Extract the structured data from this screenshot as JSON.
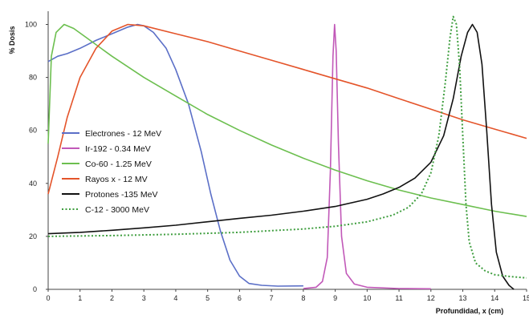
{
  "chart_data": {
    "type": "line",
    "title": "",
    "xlabel": "Profundidad, x (cm)",
    "ylabel": "% Dosis",
    "xlim": [
      0,
      15
    ],
    "ylim": [
      0,
      105
    ],
    "x_ticks": [
      "0",
      "1",
      "2",
      "3",
      "4",
      "5",
      "6",
      "7",
      "8",
      "9",
      "10",
      "11",
      "12",
      "13",
      "14",
      "15"
    ],
    "y_ticks": [
      "0",
      "20",
      "40",
      "60",
      "80",
      "100"
    ],
    "grid": false,
    "legend_position": "left-center",
    "series": [
      {
        "name": "Electrones - 12 MeV",
        "color": "#5b6fc7",
        "dash": "solid",
        "points": [
          [
            0,
            86
          ],
          [
            0.3,
            88
          ],
          [
            0.6,
            89
          ],
          [
            1,
            91
          ],
          [
            1.5,
            94
          ],
          [
            2,
            96.5
          ],
          [
            2.5,
            99
          ],
          [
            2.8,
            100
          ],
          [
            3,
            99.5
          ],
          [
            3.3,
            97
          ],
          [
            3.7,
            91
          ],
          [
            4,
            83
          ],
          [
            4.4,
            70
          ],
          [
            4.8,
            52
          ],
          [
            5.1,
            36
          ],
          [
            5.4,
            22
          ],
          [
            5.7,
            11
          ],
          [
            6,
            5
          ],
          [
            6.3,
            2.2
          ],
          [
            6.7,
            1.5
          ],
          [
            7.2,
            1.2
          ],
          [
            8,
            1.3
          ]
        ]
      },
      {
        "name": "Ir-192  -  0.34 MeV",
        "color": "#c158b8",
        "dash": "solid",
        "points": [
          [
            8,
            0.3
          ],
          [
            8.4,
            0.8
          ],
          [
            8.6,
            3
          ],
          [
            8.75,
            12
          ],
          [
            8.85,
            45
          ],
          [
            8.93,
            88
          ],
          [
            8.98,
            100
          ],
          [
            9.03,
            90
          ],
          [
            9.1,
            55
          ],
          [
            9.2,
            20
          ],
          [
            9.35,
            6
          ],
          [
            9.6,
            2
          ],
          [
            10,
            0.8
          ],
          [
            11,
            0.3
          ],
          [
            12,
            0.2
          ]
        ]
      },
      {
        "name": "Co-60 - 1.25 MeV",
        "color": "#6cbf4f",
        "dash": "solid",
        "points": [
          [
            0,
            55
          ],
          [
            0.1,
            88
          ],
          [
            0.25,
            97
          ],
          [
            0.5,
            100
          ],
          [
            0.8,
            98.5
          ],
          [
            1.2,
            95
          ],
          [
            2,
            88
          ],
          [
            3,
            80
          ],
          [
            4,
            73
          ],
          [
            5,
            66
          ],
          [
            6,
            60
          ],
          [
            7,
            54.5
          ],
          [
            8,
            49.5
          ],
          [
            9,
            45
          ],
          [
            10,
            41
          ],
          [
            11,
            37.5
          ],
          [
            12,
            34.5
          ],
          [
            13,
            32
          ],
          [
            14,
            29.5
          ],
          [
            15,
            27.5
          ]
        ]
      },
      {
        "name": "Rayos x - 12 MV",
        "color": "#e4542a",
        "dash": "solid",
        "points": [
          [
            0,
            36
          ],
          [
            0.3,
            50
          ],
          [
            0.6,
            65
          ],
          [
            1,
            80
          ],
          [
            1.5,
            91
          ],
          [
            2,
            97.5
          ],
          [
            2.5,
            100
          ],
          [
            3,
            99.5
          ],
          [
            4,
            96.5
          ],
          [
            5,
            93.5
          ],
          [
            6,
            90
          ],
          [
            7,
            86.5
          ],
          [
            8,
            83
          ],
          [
            9,
            79.5
          ],
          [
            10,
            76
          ],
          [
            11,
            72
          ],
          [
            12,
            68
          ],
          [
            13,
            64
          ],
          [
            14,
            60.5
          ],
          [
            15,
            57
          ]
        ]
      },
      {
        "name": "Protones -135 MeV",
        "color": "#111111",
        "dash": "solid",
        "points": [
          [
            0,
            21
          ],
          [
            1,
            21.5
          ],
          [
            2,
            22.3
          ],
          [
            3,
            23.2
          ],
          [
            4,
            24.2
          ],
          [
            5,
            25.5
          ],
          [
            6,
            26.8
          ],
          [
            7,
            28
          ],
          [
            8,
            29.5
          ],
          [
            9,
            31.3
          ],
          [
            10,
            34
          ],
          [
            10.5,
            36
          ],
          [
            11,
            38.5
          ],
          [
            11.5,
            42
          ],
          [
            12,
            48
          ],
          [
            12.4,
            58
          ],
          [
            12.7,
            72
          ],
          [
            12.95,
            88
          ],
          [
            13.15,
            97
          ],
          [
            13.3,
            100
          ],
          [
            13.45,
            97
          ],
          [
            13.6,
            85
          ],
          [
            13.75,
            60
          ],
          [
            13.9,
            32
          ],
          [
            14.05,
            14
          ],
          [
            14.25,
            5
          ],
          [
            14.45,
            1.5
          ],
          [
            14.6,
            0
          ]
        ]
      },
      {
        "name": "C-12 - 3000 MeV",
        "color": "#3f9e3f",
        "dash": "dotted",
        "points": [
          [
            0,
            20
          ],
          [
            2,
            20.3
          ],
          [
            4,
            20.8
          ],
          [
            6,
            21.5
          ],
          [
            8,
            22.8
          ],
          [
            9,
            23.8
          ],
          [
            10,
            25.5
          ],
          [
            10.8,
            28
          ],
          [
            11.3,
            31
          ],
          [
            11.7,
            36
          ],
          [
            12,
            44
          ],
          [
            12.25,
            58
          ],
          [
            12.45,
            78
          ],
          [
            12.6,
            95
          ],
          [
            12.7,
            103
          ],
          [
            12.8,
            100
          ],
          [
            12.9,
            84
          ],
          [
            13,
            58
          ],
          [
            13.1,
            32
          ],
          [
            13.2,
            18
          ],
          [
            13.4,
            10
          ],
          [
            13.7,
            7
          ],
          [
            14,
            5.5
          ],
          [
            14.5,
            4.8
          ],
          [
            15,
            4.3
          ]
        ]
      }
    ]
  }
}
